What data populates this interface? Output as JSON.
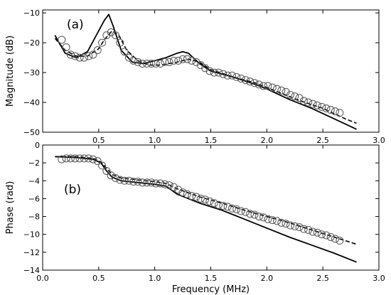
{
  "chart_data": [
    {
      "panel_label": "(a)",
      "type": "line",
      "xlabel": "",
      "ylabel": "Magnitude (dB)",
      "xlim": [
        0.0,
        3.0
      ],
      "ylim": [
        -50,
        -9
      ],
      "xticks": [
        0.5,
        1.0,
        1.5,
        2.0,
        2.5,
        3.0
      ],
      "xtick_labels": [
        "0.5",
        "1.0",
        "1.5",
        "2.0",
        "2.5",
        "3.0"
      ],
      "yticks": [
        -10,
        -20,
        -30,
        -40,
        -50
      ],
      "ytick_labels": [
        "−10",
        "−20",
        "−30",
        "−40",
        "−50"
      ],
      "grid": false,
      "series": [
        {
          "style": "solid",
          "color": "#000000",
          "x": [
            0.11,
            0.2,
            0.3,
            0.4,
            0.5,
            0.55,
            0.59,
            0.63,
            0.7,
            0.8,
            0.9,
            1.0,
            1.1,
            1.2,
            1.25,
            1.3,
            1.4,
            1.5,
            1.7,
            1.9,
            2.0,
            2.2,
            2.4,
            2.6,
            2.8
          ],
          "y": [
            -17.5,
            -23.5,
            -25.0,
            -23.0,
            -16.0,
            -12.5,
            -10.5,
            -14.5,
            -22.5,
            -26.5,
            -27.0,
            -26.0,
            -25.0,
            -23.5,
            -23.0,
            -23.5,
            -27.0,
            -29.5,
            -31.5,
            -34.0,
            -35.5,
            -39.0,
            -42.0,
            -45.5,
            -49.0
          ]
        },
        {
          "style": "dashed",
          "color": "#000000",
          "x": [
            0.11,
            0.2,
            0.3,
            0.4,
            0.5,
            0.55,
            0.62,
            0.68,
            0.75,
            0.85,
            0.95,
            1.05,
            1.2,
            1.3,
            1.4,
            1.5,
            1.7,
            1.9,
            2.1,
            2.3,
            2.5,
            2.7,
            2.8
          ],
          "y": [
            -18.5,
            -22.5,
            -24.5,
            -24.5,
            -22.0,
            -19.0,
            -16.0,
            -17.5,
            -22.5,
            -26.0,
            -27.5,
            -27.5,
            -26.5,
            -25.5,
            -26.5,
            -29.0,
            -31.5,
            -33.5,
            -36.5,
            -39.5,
            -42.0,
            -45.5,
            -47.0
          ]
        },
        {
          "style": "markers",
          "marker": "open-circle",
          "color": "#555555",
          "x": [
            0.17,
            0.21,
            0.25,
            0.29,
            0.33,
            0.37,
            0.41,
            0.45,
            0.49,
            0.53,
            0.57,
            0.61,
            0.65,
            0.69,
            0.73,
            0.77,
            0.81,
            0.85,
            0.89,
            0.93,
            0.97,
            1.01,
            1.05,
            1.09,
            1.13,
            1.17,
            1.21,
            1.25,
            1.29,
            1.33,
            1.37,
            1.41,
            1.45,
            1.49,
            1.53,
            1.57,
            1.61,
            1.65,
            1.69,
            1.73,
            1.77,
            1.81,
            1.85,
            1.89,
            1.93,
            1.97,
            2.01,
            2.05,
            2.09,
            2.13,
            2.17,
            2.21,
            2.25,
            2.29,
            2.33,
            2.37,
            2.41,
            2.45,
            2.49,
            2.53,
            2.57,
            2.61,
            2.65
          ],
          "y": [
            -19.0,
            -21.5,
            -24.0,
            -24.5,
            -25.0,
            -25.0,
            -24.5,
            -24.0,
            -22.5,
            -20.0,
            -17.5,
            -16.5,
            -17.5,
            -20.0,
            -23.0,
            -25.0,
            -26.0,
            -26.5,
            -27.0,
            -27.0,
            -27.0,
            -27.0,
            -27.0,
            -26.5,
            -26.5,
            -26.0,
            -26.0,
            -25.5,
            -25.5,
            -26.0,
            -26.5,
            -27.5,
            -28.5,
            -29.5,
            -30.0,
            -30.0,
            -30.5,
            -31.0,
            -31.0,
            -31.5,
            -32.0,
            -32.5,
            -33.0,
            -33.5,
            -34.0,
            -34.5,
            -34.5,
            -35.0,
            -35.5,
            -36.0,
            -36.5,
            -37.5,
            -38.0,
            -38.5,
            -39.5,
            -40.0,
            -40.5,
            -41.0,
            -41.5,
            -42.0,
            -42.5,
            -43.0,
            -43.5
          ]
        }
      ]
    },
    {
      "panel_label": "(b)",
      "type": "line",
      "xlabel": "Frequency (MHz)",
      "ylabel": "Phase (rad)",
      "xlim": [
        0.0,
        3.0
      ],
      "ylim": [
        -14,
        0
      ],
      "xticks": [
        0.0,
        0.5,
        1.0,
        1.5,
        2.0,
        2.5,
        3.0
      ],
      "xtick_labels": [
        "0.0",
        "0.5",
        "1.0",
        "1.5",
        "2.0",
        "2.5",
        "3.0"
      ],
      "yticks": [
        0,
        -2,
        -4,
        -6,
        -8,
        -10,
        -12,
        -14
      ],
      "ytick_labels": [
        "0",
        "−2",
        "−4",
        "−6",
        "−8",
        "−10",
        "−12",
        "−14"
      ],
      "grid": false,
      "series": [
        {
          "style": "solid",
          "color": "#000000",
          "x": [
            0.11,
            0.3,
            0.45,
            0.52,
            0.57,
            0.62,
            0.7,
            0.85,
            1.0,
            1.1,
            1.2,
            1.4,
            1.6,
            1.8,
            2.0,
            2.2,
            2.4,
            2.6,
            2.8
          ],
          "y": [
            -1.3,
            -1.4,
            -1.6,
            -2.0,
            -2.9,
            -3.6,
            -4.0,
            -4.2,
            -4.4,
            -4.6,
            -5.5,
            -6.5,
            -7.3,
            -8.3,
            -9.3,
            -10.3,
            -11.2,
            -12.1,
            -13.1
          ]
        },
        {
          "style": "dashed",
          "color": "#000000",
          "x": [
            0.11,
            0.3,
            0.45,
            0.52,
            0.57,
            0.62,
            0.7,
            0.85,
            1.0,
            1.1,
            1.2,
            1.4,
            1.6,
            1.8,
            2.0,
            2.2,
            2.4,
            2.6,
            2.8
          ],
          "y": [
            -1.3,
            -1.3,
            -1.5,
            -1.9,
            -2.6,
            -3.3,
            -3.7,
            -3.9,
            -4.1,
            -4.3,
            -4.9,
            -5.8,
            -6.5,
            -7.3,
            -8.0,
            -8.7,
            -9.5,
            -10.3,
            -11.1
          ]
        },
        {
          "style": "markers",
          "marker": "open-circle",
          "color": "#555555",
          "x": [
            0.17,
            0.21,
            0.25,
            0.29,
            0.33,
            0.37,
            0.41,
            0.45,
            0.49,
            0.53,
            0.57,
            0.61,
            0.65,
            0.69,
            0.73,
            0.77,
            0.81,
            0.85,
            0.89,
            0.93,
            0.97,
            1.01,
            1.05,
            1.09,
            1.13,
            1.17,
            1.21,
            1.25,
            1.29,
            1.33,
            1.37,
            1.41,
            1.45,
            1.49,
            1.53,
            1.57,
            1.61,
            1.65,
            1.69,
            1.73,
            1.77,
            1.81,
            1.85,
            1.89,
            1.93,
            1.97,
            2.01,
            2.05,
            2.09,
            2.13,
            2.17,
            2.21,
            2.25,
            2.29,
            2.33,
            2.37,
            2.41,
            2.45,
            2.49,
            2.53,
            2.57,
            2.61,
            2.65
          ],
          "y": [
            -1.6,
            -1.5,
            -1.5,
            -1.5,
            -1.5,
            -1.5,
            -1.5,
            -1.6,
            -1.8,
            -2.3,
            -2.9,
            -3.4,
            -3.7,
            -3.9,
            -4.0,
            -4.0,
            -4.1,
            -4.1,
            -4.2,
            -4.2,
            -4.2,
            -4.3,
            -4.3,
            -4.4,
            -4.5,
            -4.7,
            -5.0,
            -5.3,
            -5.5,
            -5.7,
            -5.8,
            -6.0,
            -6.1,
            -6.3,
            -6.5,
            -6.7,
            -6.8,
            -6.9,
            -7.1,
            -7.2,
            -7.4,
            -7.5,
            -7.7,
            -7.8,
            -8.0,
            -8.1,
            -8.3,
            -8.4,
            -8.5,
            -8.7,
            -8.8,
            -9.0,
            -9.1,
            -9.2,
            -9.4,
            -9.5,
            -9.7,
            -9.8,
            -10.0,
            -10.1,
            -10.3,
            -10.5,
            -10.7
          ]
        }
      ]
    }
  ]
}
